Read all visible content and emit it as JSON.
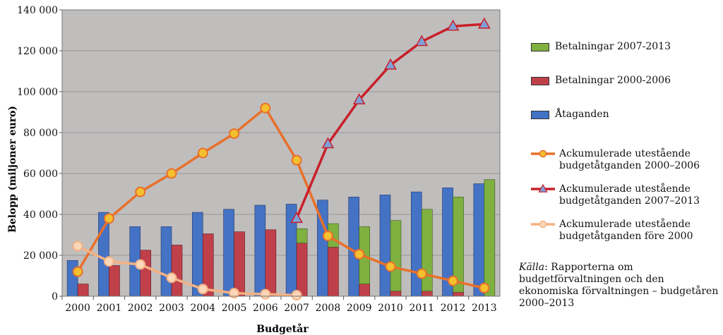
{
  "chart_data": {
    "type": "bar",
    "categories": [
      "2000",
      "2001",
      "2002",
      "2003",
      "2004",
      "2005",
      "2006",
      "2007",
      "2008",
      "2009",
      "2010",
      "2011",
      "2012",
      "2013"
    ],
    "xlabel": "Budgetår",
    "ylabel": "Belopp (miljoner euro)",
    "ylim": [
      0,
      140000
    ],
    "y_ticks": [
      "0",
      "20 000",
      "40 000",
      "60 000",
      "80 000",
      "100 000",
      "120 000",
      "140 000"
    ],
    "grid": true,
    "legend_position": "right",
    "bar_series": [
      {
        "name": "Åtaganden",
        "color": "#4472c4",
        "values": [
          17500,
          41000,
          34000,
          34000,
          41000,
          42500,
          44500,
          45000,
          47000,
          48500,
          49500,
          51000,
          53000,
          55000
        ]
      },
      {
        "name": "Betalningar 2000-2006",
        "color": "#c0404a",
        "values": [
          6000,
          15000,
          22500,
          25000,
          30500,
          31500,
          32500,
          26000,
          24000,
          6000,
          2500,
          2500,
          2000,
          0
        ]
      },
      {
        "name": "Betalningar 2007-2013",
        "color": "#7fb040",
        "values": [
          0,
          0,
          0,
          0,
          0,
          0,
          0,
          7000,
          11500,
          28000,
          34500,
          40000,
          46500,
          57000
        ]
      }
    ],
    "line_series": [
      {
        "name": "Ackumulerade utestående\nbudgetåtganden 2000–2006",
        "color": "#e8702a",
        "marker": "circle",
        "marker_fill": "#f5c030",
        "start_index": 0,
        "values": [
          12000,
          38000,
          51000,
          60000,
          70000,
          79500,
          92000,
          66500,
          29500,
          20500,
          14500,
          11000,
          7500,
          4000
        ]
      },
      {
        "name": "Ackumulerade utestående\nbudgetåtganden 2007–2013",
        "color": "#c8202a",
        "marker": "triangle",
        "marker_fill": "#7fa0d8",
        "start_index": 7,
        "values": [
          38000,
          74500,
          96000,
          113000,
          124500,
          132000,
          133000
        ]
      },
      {
        "name": "Ackumulerade utestående\nbudgetåtganden före 2000",
        "color": "#f4b183",
        "marker": "circle",
        "marker_fill": "#fbd7b8",
        "start_index": 0,
        "values": [
          24500,
          17000,
          15500,
          9000,
          3500,
          1500,
          1000,
          500
        ]
      }
    ]
  },
  "legend": {
    "order": [
      {
        "kind": "bar",
        "series": "Betalningar 2007-2013"
      },
      {
        "kind": "bar",
        "series": "Betalningar 2000-2006"
      },
      {
        "kind": "bar",
        "series": "Åtaganden"
      },
      {
        "kind": "line",
        "series": 0
      },
      {
        "kind": "line",
        "series": 1
      },
      {
        "kind": "line",
        "series": 2
      }
    ]
  },
  "source": {
    "label": "Källa",
    "text": ": Rapporterna om budgetförvaltningen och den ekonomiska förvaltningen – budgetåren 2000–2013"
  }
}
